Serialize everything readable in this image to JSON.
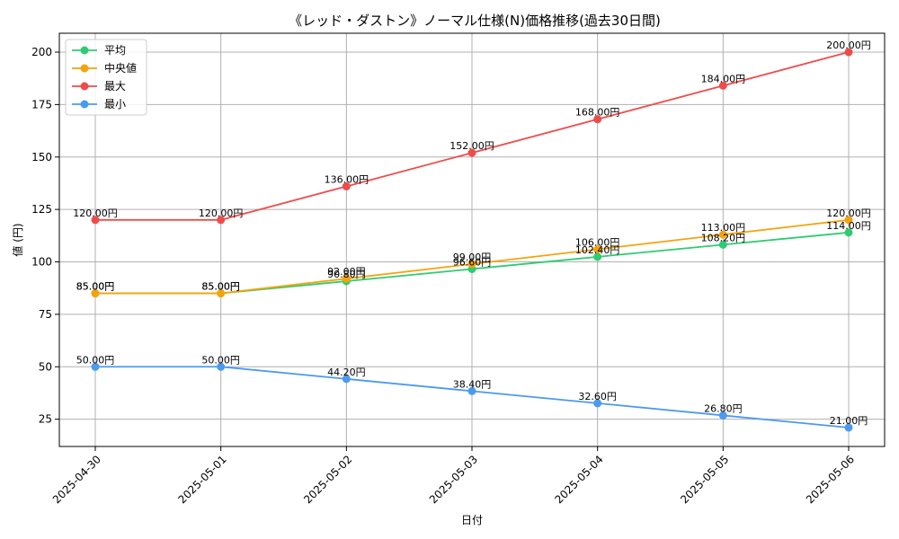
{
  "chart_data": {
    "type": "line",
    "title": "《レッド・ダストン》ノーマル仕様(N)価格推移(過去30日間)",
    "xlabel": "日付",
    "ylabel": "値 (円)",
    "categories": [
      "2025-04-30",
      "2025-05-01",
      "2025-05-02",
      "2025-05-03",
      "2025-05-04",
      "2025-05-05",
      "2025-05-06"
    ],
    "ylim": [
      12,
      209
    ],
    "yticks": [
      25,
      50,
      75,
      100,
      125,
      150,
      175,
      200
    ],
    "ytick_labels": [
      "25",
      "50",
      "75",
      "100",
      "125",
      "150",
      "175",
      "200"
    ],
    "grid": true,
    "legend_position": "top-left",
    "series": [
      {
        "name": "平均",
        "color": "#2ecc71",
        "values": [
          85,
          85,
          90.8,
          96.6,
          102.4,
          108.2,
          114
        ],
        "labels": [
          "85.00円",
          "85.00円",
          "90.80円",
          "96.60円",
          "102.40円",
          "108.20円",
          "114.00円"
        ]
      },
      {
        "name": "中央値",
        "color": "#f5a30c",
        "values": [
          85,
          85,
          92,
          99,
          106,
          113,
          120
        ],
        "labels": [
          "85.00円",
          "85.00円",
          "92.00円",
          "99.00円",
          "106.00円",
          "113.00円",
          "120.00円"
        ]
      },
      {
        "name": "最大",
        "color": "#ef4b4b",
        "values": [
          120,
          120,
          136,
          152,
          168,
          184,
          200
        ],
        "labels": [
          "120.00円",
          "120.00円",
          "136.00円",
          "152.00円",
          "168.00円",
          "184.00円",
          "200.00円"
        ]
      },
      {
        "name": "最小",
        "color": "#4a9af0",
        "values": [
          50,
          50,
          44.2,
          38.4,
          32.6,
          26.8,
          21
        ],
        "labels": [
          "50.00円",
          "50.00円",
          "44.20円",
          "38.40円",
          "32.60円",
          "26.80円",
          "21.00円"
        ]
      }
    ]
  }
}
